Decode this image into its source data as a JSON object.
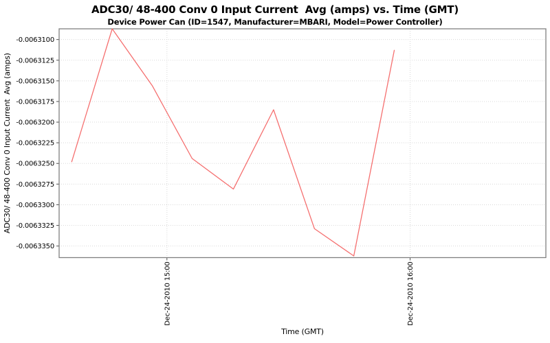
{
  "chart_data": {
    "type": "line",
    "title": "ADC30/ 48-400 Conv 0 Input Current  Avg (amps) vs. Time (GMT)",
    "subtitle": "Device Power Can (ID=1547, Manufacturer=MBARI, Model=Power Controller)",
    "xlabel": "Time (GMT)",
    "ylabel": "ADC30/ 48-400 Conv 0 Input Current  Avg (amps)",
    "legend": "none",
    "grid": "dotted",
    "x_axis": {
      "date": "Dec-24-2010",
      "ticks": [
        {
          "label": "Dec-24-2010 15:00",
          "minutes": 0
        },
        {
          "label": "Dec-24-2010 16:00",
          "minutes": 60
        }
      ],
      "range_minutes": [
        -26.6,
        93.5
      ]
    },
    "y_axis": {
      "ticks": [
        "-0.0063100",
        "-0.0063125",
        "-0.0063150",
        "-0.0063175",
        "-0.0063200",
        "-0.0063225",
        "-0.0063250",
        "-0.0063275",
        "-0.0063300",
        "-0.0063325",
        "-0.0063350"
      ],
      "range": [
        -0.0063364,
        -0.0063087
      ]
    },
    "points": [
      {
        "time": "14:36",
        "minutes": -23.5,
        "amps": -0.0063248
      },
      {
        "time": "14:46",
        "minutes": -13.5,
        "amps": -0.0063087
      },
      {
        "time": "14:56",
        "minutes": -3.6,
        "amps": -0.0063156
      },
      {
        "time": "15:06",
        "minutes": 6.2,
        "amps": -0.0063244
      },
      {
        "time": "15:16",
        "minutes": 16.4,
        "amps": -0.0063281
      },
      {
        "time": "15:26",
        "minutes": 26.3,
        "amps": -0.0063185
      },
      {
        "time": "15:36",
        "minutes": 36.4,
        "amps": -0.0063329
      },
      {
        "time": "15:46",
        "minutes": 46.1,
        "amps": -0.0063362
      },
      {
        "time": "15:56",
        "minutes": 56.1,
        "amps": -0.0063113
      }
    ],
    "colors": {
      "line": "#f56f6f",
      "gridline": "#d8d8d8",
      "plot_border": "#7f7f7f",
      "tick": "#4d4d4d",
      "text": "#000000",
      "background": "#ffffff"
    }
  }
}
